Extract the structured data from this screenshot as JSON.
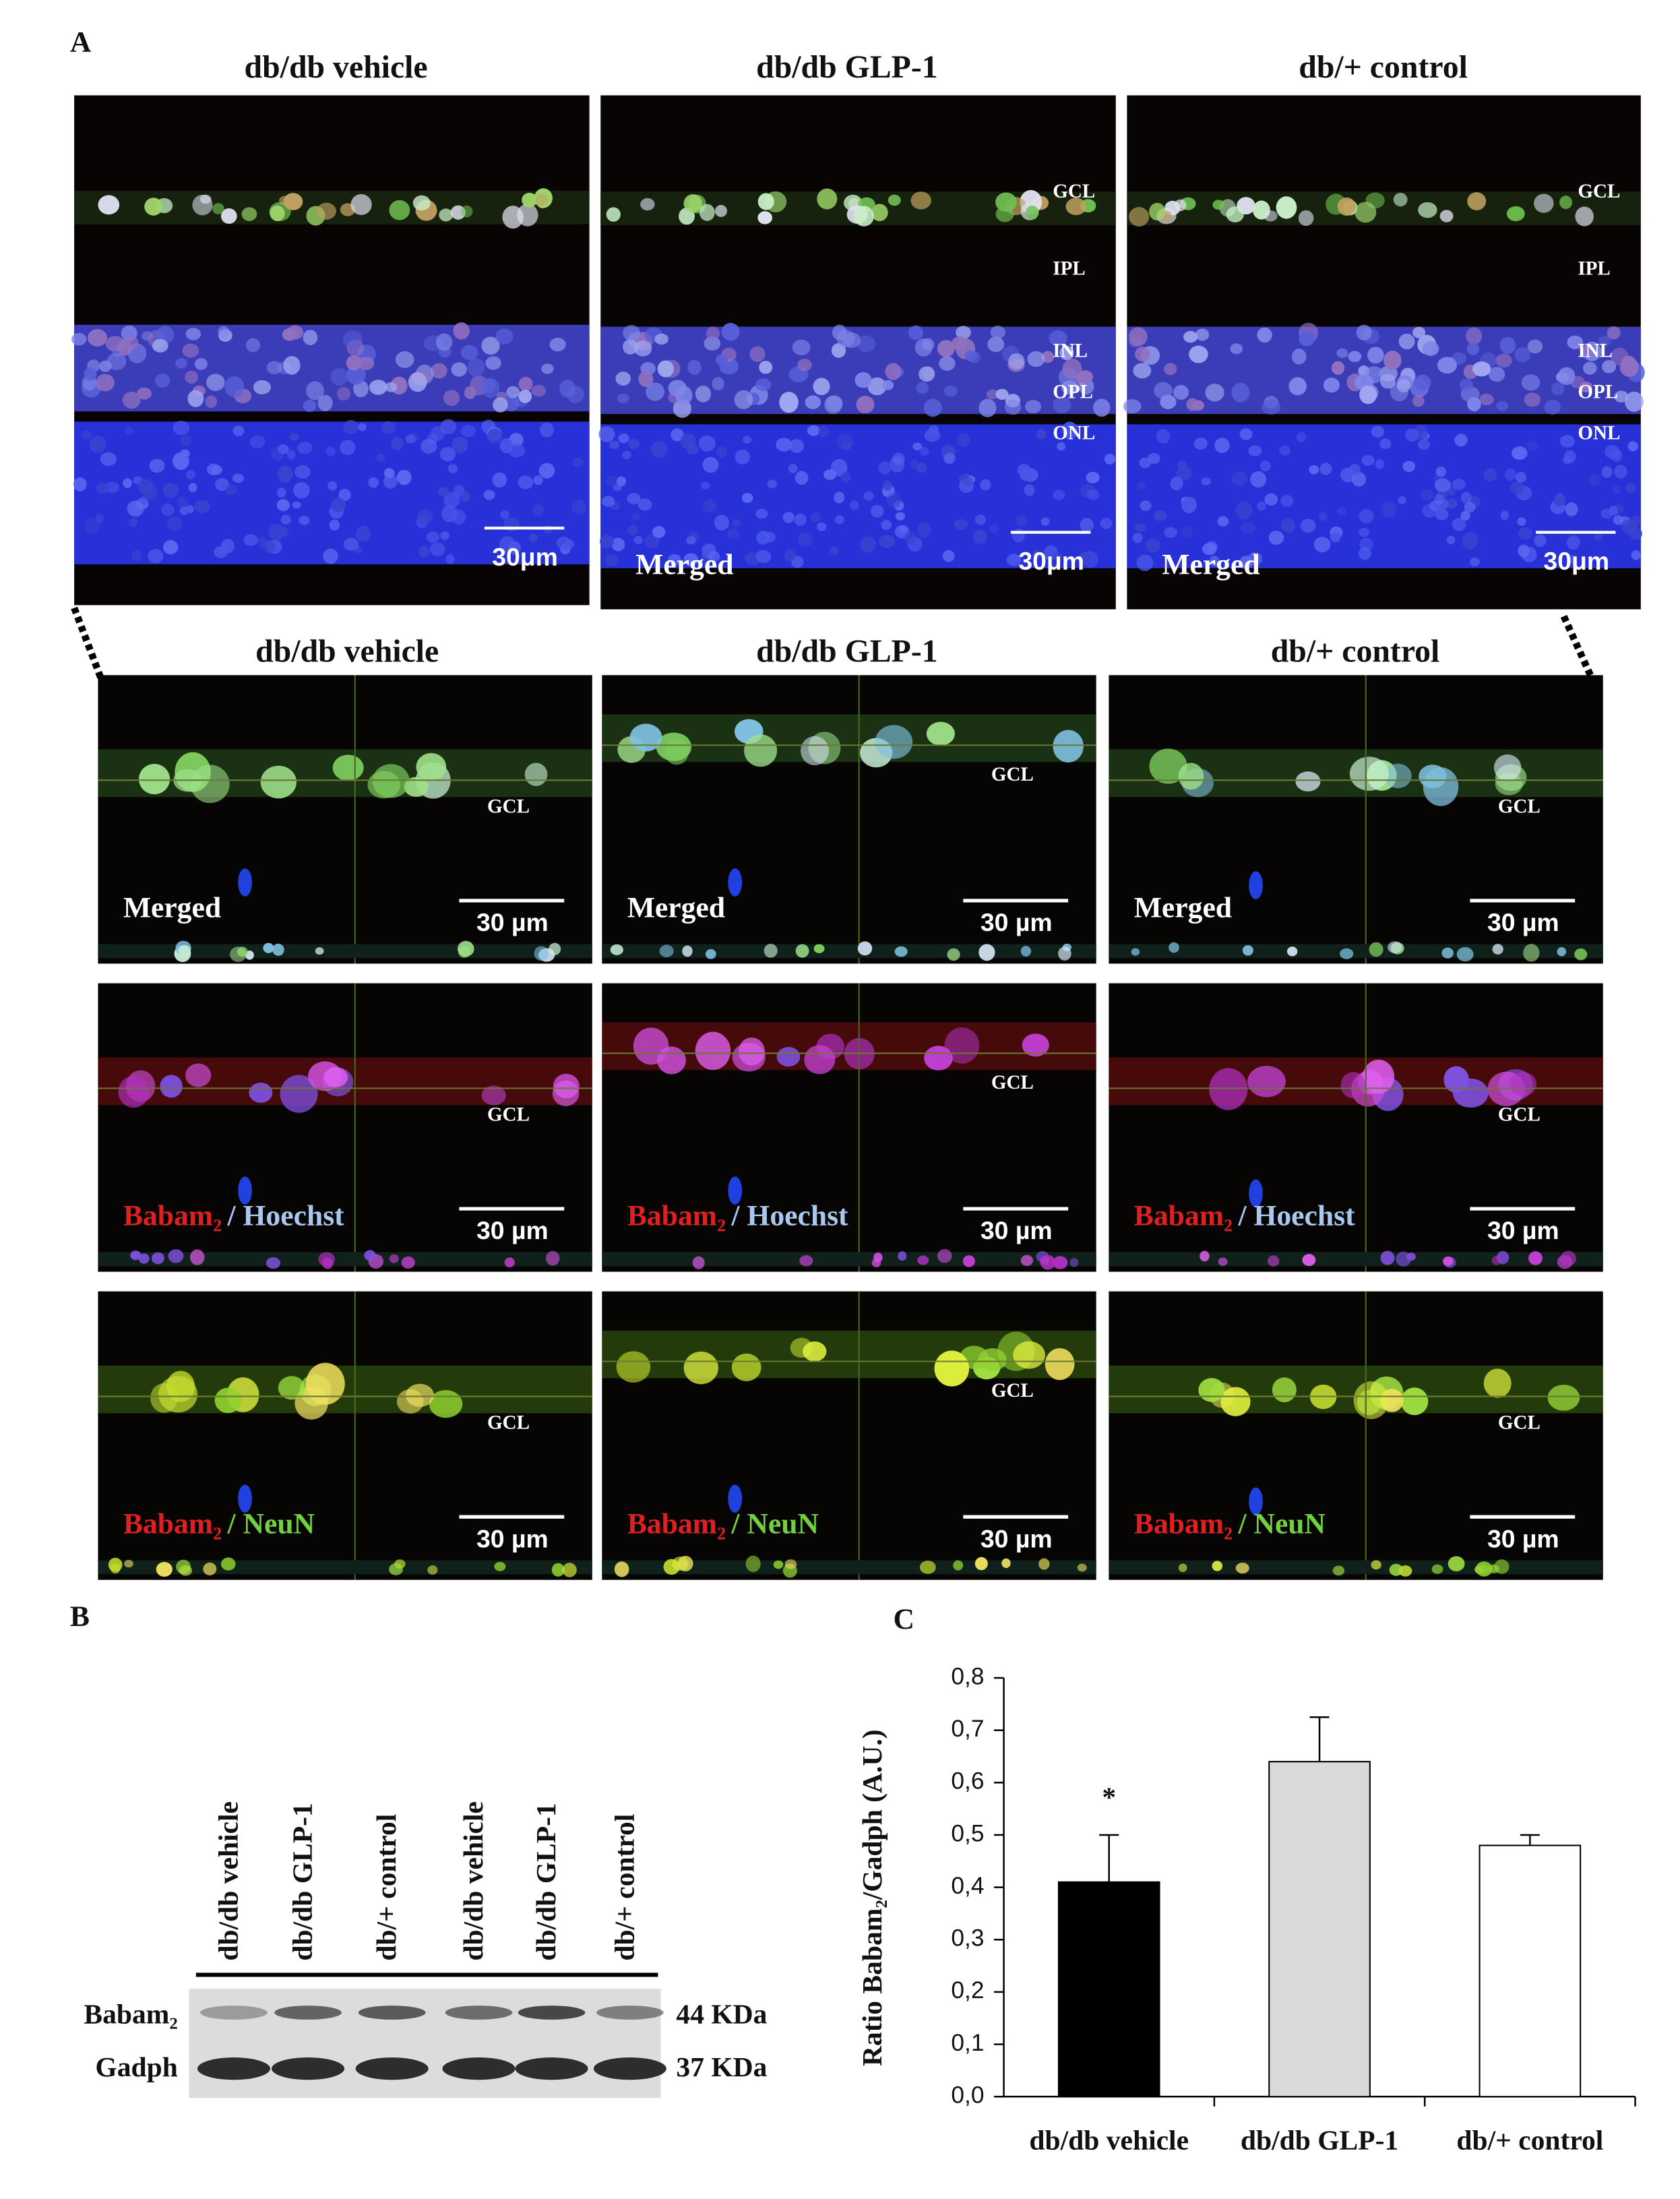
{
  "panel_labels": [
    "A",
    "B",
    "C"
  ],
  "panel_a": {
    "group_titles": [
      "db/db vehicle",
      "db/db GLP-1",
      "db/+ control"
    ],
    "layer_labels": [
      "GCL",
      "IPL",
      "INL",
      "OPL",
      "ONL"
    ],
    "scale_bar_overview": "30μm",
    "scale_bar_zoom": "30 µm",
    "merged": "Merged",
    "babam": "Babam₂",
    "hoechst": "/ Hoechst",
    "neun": "/ NeuN"
  },
  "panel_b": {
    "lanes": [
      "db/db vehicle",
      "db/db GLP-1",
      "db/+ control",
      "db/db vehicle",
      "db/db GLP-1",
      "db/+ control"
    ],
    "rows": [
      "Babam₂",
      "Gadph"
    ],
    "sizes": [
      "44 KDa",
      "37 KDa"
    ]
  },
  "chart_data": {
    "type": "bar",
    "ylabel": "Ratio Babam₂/Gadph (A.U.)",
    "categories": [
      "db/db vehicle",
      "db/db GLP-1",
      "db/+ control"
    ],
    "values": [
      0.41,
      0.64,
      0.48
    ],
    "errors": [
      0.09,
      0.085,
      0.02
    ],
    "colors": [
      "#000000",
      "#d9d9d9",
      "#ffffff"
    ],
    "significance": [
      "*",
      null,
      null
    ],
    "ylim": [
      0,
      0.8
    ],
    "yticks": [
      {
        "value": 0,
        "label": "0,0"
      },
      {
        "value": 0.1,
        "label": "0,1"
      },
      {
        "value": 0.2,
        "label": "0,2"
      },
      {
        "value": 0.3,
        "label": "0,3"
      },
      {
        "value": 0.4,
        "label": "0,4"
      },
      {
        "value": 0.5,
        "label": "0,5"
      },
      {
        "value": 0.6,
        "label": "0,6"
      },
      {
        "value": 0.7,
        "label": "0,7"
      },
      {
        "value": 0.8,
        "label": "0,8"
      }
    ]
  }
}
